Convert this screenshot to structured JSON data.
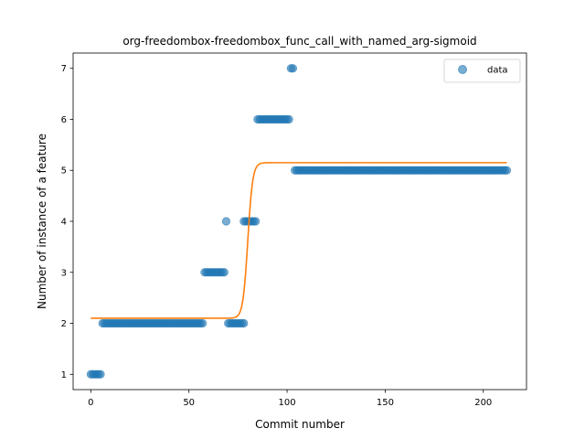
{
  "chart_data": {
    "type": "scatter",
    "title": "org-freedombox-freedombox_func_call_with_named_arg-sigmoid",
    "xlabel": "Commit number",
    "ylabel": "Number of instance of a feature",
    "xlim": [
      -9,
      222
    ],
    "ylim": [
      0.7,
      7.3
    ],
    "xticks": [
      0,
      50,
      100,
      150,
      200
    ],
    "yticks": [
      1,
      2,
      3,
      4,
      5,
      6,
      7
    ],
    "grid": false,
    "legend_position": "top-right",
    "series": [
      {
        "name": "data",
        "kind": "scatter",
        "color": "#1f77b4",
        "opacity": 0.6,
        "runs": [
          {
            "x_from": 0,
            "x_to": 5,
            "y": 1
          },
          {
            "x_from": 6,
            "x_to": 57,
            "y": 2
          },
          {
            "x_from": 58,
            "x_to": 68,
            "y": 3
          },
          {
            "x_from": 69,
            "x_to": 69,
            "y": 4
          },
          {
            "x_from": 70,
            "x_to": 78,
            "y": 2
          },
          {
            "x_from": 78,
            "x_to": 84,
            "y": 4
          },
          {
            "x_from": 85,
            "x_to": 101,
            "y": 6
          },
          {
            "x_from": 102,
            "x_to": 103,
            "y": 7
          },
          {
            "x_from": 104,
            "x_to": 212,
            "y": 5
          }
        ]
      },
      {
        "name": "",
        "kind": "line",
        "color": "#ff7f0e",
        "curve": "sigmoid",
        "x_range": [
          0,
          212
        ],
        "low": 2.1,
        "high": 5.15,
        "midpoint": 80,
        "steepness": 0.8
      }
    ]
  }
}
